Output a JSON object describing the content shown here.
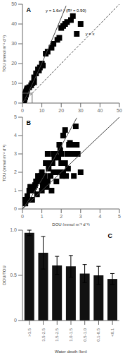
{
  "chart_data": [
    {
      "type": "scatter",
      "y_label": "TOU (mmol m⁻² d⁻¹)",
      "xlim": [
        0,
        50
      ],
      "ylim": [
        0,
        50
      ],
      "xticks": [
        0,
        10,
        20,
        30,
        40,
        50
      ],
      "yticks": [
        0,
        10,
        20,
        30,
        40,
        50
      ],
      "annotations": [
        "A",
        "y = 1.6x¹·¹ (R² = 0.90)",
        "y = x"
      ],
      "series": [
        {
          "type": "scatter",
          "color": "black",
          "marker": "square",
          "x": [
            0.2,
            0.3,
            0.4,
            0.5,
            0.6,
            0.7,
            0.8,
            0.9,
            1.0,
            1.1,
            1.2,
            1.3,
            1.4,
            1.5,
            1.6,
            1.7,
            1.8,
            2.0,
            2.2,
            2.5,
            0.15,
            0.25,
            0.35,
            0.45,
            0.55,
            0.65,
            0.75,
            0.85,
            0.95,
            1.05,
            1.15,
            1.25,
            1.35,
            1.45,
            1.55,
            1.65,
            1.75,
            1.95,
            2.1,
            2.4,
            5.0,
            6.0,
            7.0,
            8.0,
            9.0,
            10.0,
            12.0,
            15.0,
            18.0,
            20.0,
            22.0,
            25.0,
            28.0,
            6.0,
            8.5,
            10.5,
            13.0,
            16.0,
            19.0,
            21.0,
            23.0,
            26.0,
            30.0,
            4.5,
            3.5
          ],
          "values": [
            0.4,
            0.6,
            0.8,
            1.0,
            1.2,
            1.4,
            1.6,
            2.0,
            2.2,
            2.5,
            3.0,
            3.0,
            3.5,
            3.8,
            4.2,
            4.5,
            5.0,
            5.5,
            6.5,
            7.5,
            0.3,
            0.5,
            0.7,
            0.9,
            1.1,
            1.3,
            1.5,
            1.8,
            2.1,
            2.4,
            2.8,
            3.2,
            3.6,
            4.0,
            4.3,
            4.8,
            5.2,
            5.8,
            6.0,
            7.0,
            10.0,
            13.0,
            15.0,
            17.0,
            18.0,
            20.0,
            25.0,
            28.0,
            32.0,
            38.0,
            40.0,
            42.0,
            35.0,
            10.5,
            16.5,
            19.0,
            26.0,
            30.0,
            33.0,
            39.0,
            41.0,
            44.0,
            40.0,
            9.0,
            8.0
          ]
        },
        {
          "type": "line",
          "color": "#444444",
          "line_style": "solid",
          "x": [
            0,
            1,
            2.5,
            5,
            10,
            15,
            20,
            22.5
          ],
          "values": [
            0,
            1.6,
            4.384,
            9.397,
            20.143,
            31.464,
            43.178,
            49.15
          ]
        },
        {
          "type": "line",
          "color": "#444444",
          "line_style": "dashed",
          "x": [
            0,
            50
          ],
          "values": [
            0,
            50
          ]
        },
        {
          "type": "line",
          "color": "#666666",
          "line_style": "solid",
          "x": [
            0,
            5,
            5
          ],
          "values": [
            5,
            5,
            0
          ]
        }
      ]
    },
    {
      "type": "scatter",
      "x_label": "DOU (mmol m⁻² d⁻¹)",
      "y_label": "TOU (mmol m⁻² d⁻¹)",
      "xlim": [
        0,
        5
      ],
      "ylim": [
        0,
        5
      ],
      "xticks": [
        0,
        1,
        2,
        3,
        4,
        5
      ],
      "yticks": [
        0,
        1,
        2,
        3,
        4,
        5
      ],
      "annotations": [
        "B"
      ],
      "series": [
        {
          "type": "scatter",
          "color": "black",
          "marker": "square",
          "x": [
            0.2,
            0.3,
            0.35,
            0.4,
            0.45,
            0.5,
            0.6,
            0.7,
            0.8,
            0.9,
            1.0,
            1.0,
            1.1,
            1.2,
            1.3,
            1.3,
            1.4,
            1.5,
            1.5,
            1.6,
            1.6,
            1.7,
            1.8,
            1.9,
            2.0,
            2.0,
            2.0,
            2.1,
            2.1,
            2.2,
            2.2,
            2.3,
            2.4,
            2.5,
            2.6,
            2.7,
            2.8,
            3.0,
            0.1,
            0.15,
            0.25,
            0.55,
            0.65,
            0.75,
            0.85,
            0.95,
            1.05,
            1.15,
            1.25,
            1.35,
            1.45,
            1.55,
            1.65,
            1.75,
            1.85,
            1.95,
            2.05,
            2.15,
            2.25,
            2.35,
            2.45,
            2.55,
            2.65,
            2.75,
            2.85
          ],
          "values": [
            0.5,
            0.5,
            1.0,
            1.2,
            1.2,
            0.5,
            1.2,
            1.5,
            1.8,
            1.5,
            1.0,
            2.0,
            1.5,
            2.5,
            1.5,
            3.0,
            2.5,
            1.0,
            2.5,
            2.0,
            3.0,
            3.0,
            2.0,
            3.5,
            2.0,
            2.5,
            3.0,
            2.0,
            4.0,
            2.5,
            4.3,
            3.0,
            3.5,
            3.0,
            3.5,
            3.0,
            3.5,
            2.0,
            0.5,
            0.3,
            0.7,
            1.0,
            1.3,
            0.8,
            1.5,
            1.8,
            1.3,
            1.8,
            1.2,
            2.2,
            1.8,
            2.5,
            2.8,
            1.5,
            2.8,
            3.2,
            1.8,
            2.5,
            1.8,
            2.2,
            3.6,
            3.5,
            1.8,
            4.5,
            3.0
          ]
        },
        {
          "type": "line",
          "color": "#444444",
          "line_style": "solid",
          "x": [
            0,
            0.5,
            1,
            1.5,
            2,
            2.5,
            2.8
          ],
          "values": [
            0,
            0.7464,
            1.6,
            2.4993,
            3.4297,
            4.3838,
            4.9659
          ]
        },
        {
          "type": "line",
          "color": "#444444",
          "line_style": "solid",
          "x": [
            0,
            5
          ],
          "values": [
            0,
            5
          ]
        }
      ]
    },
    {
      "type": "bar",
      "x_label": "Water depth (km)",
      "y_label": "DOU/TOU",
      "categories": [
        ">3.5",
        "3.5-2.5",
        "1.5-2.5",
        "1.0-1.5",
        "0.5-1.0",
        "0.1-0.5",
        "<0.1"
      ],
      "values": [
        0.97,
        0.75,
        0.61,
        0.6,
        0.52,
        0.5,
        0.46
      ],
      "errors": [
        0.03,
        0.18,
        0.1,
        0.12,
        0.1,
        0.1,
        0.06
      ],
      "color": "#111111",
      "ylim": [
        0,
        1.0
      ],
      "yticks": [
        0,
        0.5,
        {
          "value": 1.0,
          "label": "1.0"
        }
      ],
      "annotations": [
        "C"
      ]
    }
  ]
}
